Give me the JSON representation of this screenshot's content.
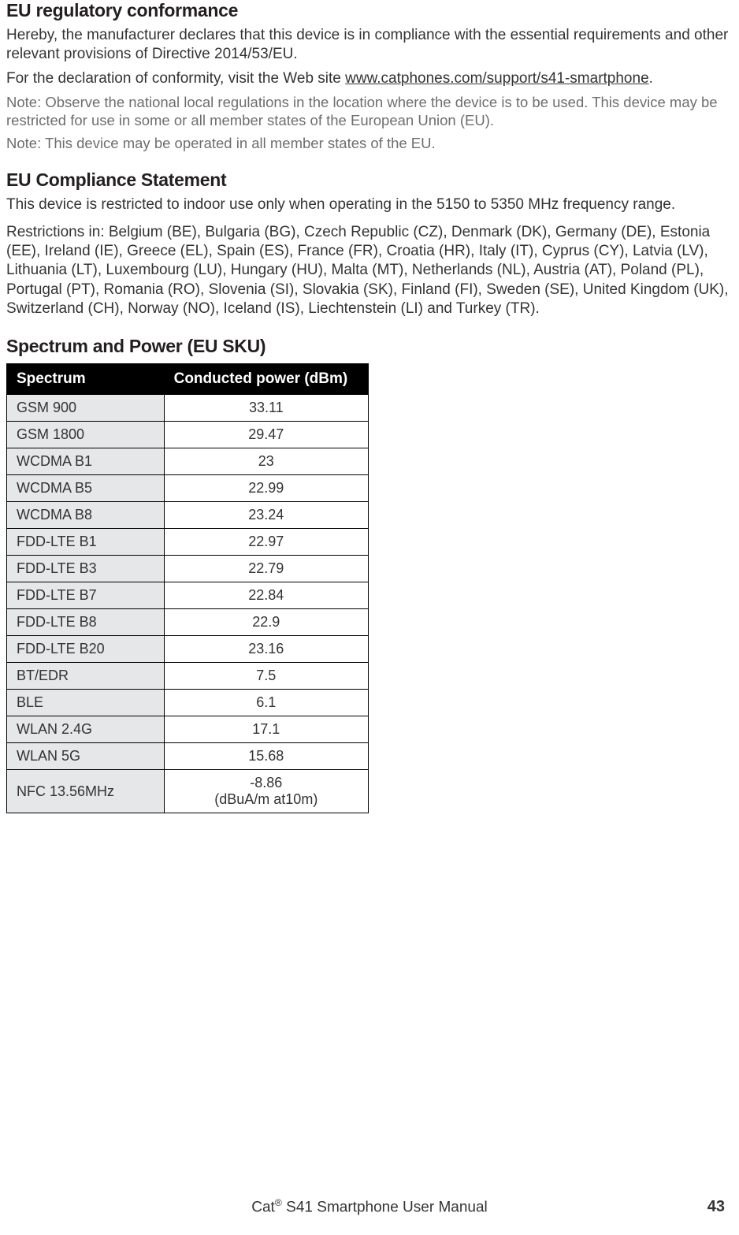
{
  "section1": {
    "heading": "EU regulatory conformance",
    "p1": "Hereby, the manufacturer declares that this device is in compliance with the essential requirements and other relevant provisions of Directive 2014/53/EU.",
    "p2_pre": "For the declaration of conformity, visit the Web site ",
    "p2_link": "www.catphones.com/support/s41-smartphone",
    "p2_post": ".",
    "note1": "Note: Observe the national local regulations in the location where the device is to be used. This device may be restricted for use in some or all member states of the European Union (EU).",
    "note2": "Note: This device may be operated in all member states of the EU."
  },
  "section2": {
    "heading": "EU Compliance Statement",
    "p1": "This device is restricted to indoor use only when operating in the 5150 to 5350 MHz frequency range.",
    "p2": "Restrictions in: Belgium (BE), Bulgaria (BG), Czech Republic (CZ), Denmark (DK), Germany (DE), Estonia (EE), Ireland (IE), Greece (EL), Spain (ES), France (FR), Croatia (HR), Italy (IT), Cyprus (CY), Latvia (LV), Lithuania (LT), Luxembourg (LU), Hungary (HU), Malta (MT), Netherlands (NL), Austria (AT), Poland (PL), Portugal (PT), Romania (RO), Slovenia (SI), Slovakia (SK), Finland (FI), Sweden (SE), United Kingdom (UK), Switzerland (CH), Norway (NO), Iceland (IS), Liechtenstein (LI) and Turkey (TR)."
  },
  "section3": {
    "heading": "Spectrum and Power (EU SKU)"
  },
  "table": {
    "header": {
      "col1": "Spectrum",
      "col2": "Conducted power (dBm)"
    },
    "rows": [
      {
        "spectrum": "GSM 900",
        "power": "33.11"
      },
      {
        "spectrum": "GSM 1800",
        "power": "29.47"
      },
      {
        "spectrum": "WCDMA B1",
        "power": "23"
      },
      {
        "spectrum": "WCDMA B5",
        "power": "22.99"
      },
      {
        "spectrum": "WCDMA B8",
        "power": "23.24"
      },
      {
        "spectrum": "FDD-LTE B1",
        "power": "22.97"
      },
      {
        "spectrum": "FDD-LTE B3",
        "power": "22.79"
      },
      {
        "spectrum": "FDD-LTE  B7",
        "power": "22.84"
      },
      {
        "spectrum": "FDD-LTE  B8",
        "power": "22.9"
      },
      {
        "spectrum": "FDD-LTE B20",
        "power": "23.16"
      },
      {
        "spectrum": "BT/EDR",
        "power": "7.5"
      },
      {
        "spectrum": "BLE",
        "power": "6.1"
      },
      {
        "spectrum": "WLAN 2.4G",
        "power": "17.1"
      },
      {
        "spectrum": "WLAN 5G",
        "power": "15.68"
      },
      {
        "spectrum": "NFC 13.56MHz",
        "power": "-8.86\n(dBuA/m at10m)"
      }
    ]
  },
  "footer": {
    "title_pre": "Cat",
    "title_sup": "®",
    "title_post": " S41 Smartphone User Manual",
    "page": "43"
  }
}
